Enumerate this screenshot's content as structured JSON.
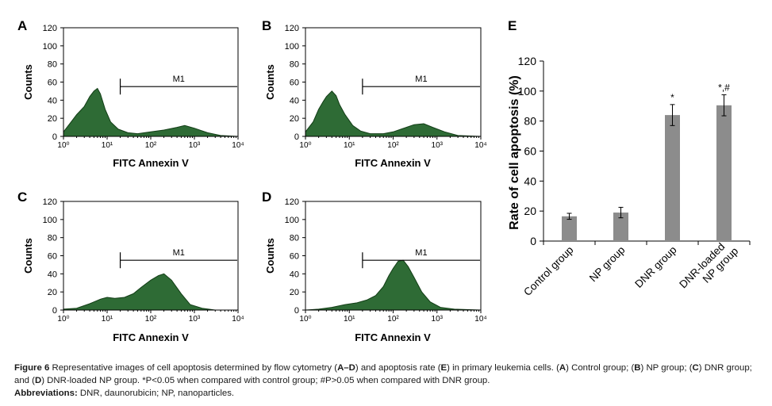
{
  "colors": {
    "histogram_fill": "#2e6b35",
    "bar_fill": "#8c8c8c",
    "axis": "#000000"
  },
  "chart_data": [
    {
      "panel": "A",
      "type": "area",
      "title": "",
      "xlabel": "FITC Annexin V",
      "ylabel": "Counts",
      "xscale": "log",
      "xlim": [
        1,
        10000
      ],
      "ylim": [
        0,
        120
      ],
      "yticks": [
        "0",
        "20",
        "40",
        "60",
        "80",
        "100",
        "120"
      ],
      "xticks": [
        "10⁰",
        "10¹",
        "10²",
        "10³",
        "10⁴"
      ],
      "gate": {
        "label": "M1",
        "from": 20,
        "to": 10000,
        "level": 55
      },
      "x": [
        1,
        1.5,
        2,
        3,
        4,
        5,
        6,
        7,
        9,
        12,
        18,
        30,
        50,
        100,
        200,
        400,
        600,
        1000,
        2000,
        4000,
        10000
      ],
      "y": [
        5,
        16,
        24,
        33,
        44,
        50,
        53,
        47,
        30,
        16,
        8,
        4,
        3,
        5,
        7,
        10,
        12,
        9,
        4,
        1,
        0
      ]
    },
    {
      "panel": "B",
      "type": "area",
      "title": "",
      "xlabel": "FITC Annexin V",
      "ylabel": "Counts",
      "xscale": "log",
      "xlim": [
        1,
        10000
      ],
      "ylim": [
        0,
        120
      ],
      "yticks": [
        "0",
        "20",
        "40",
        "60",
        "80",
        "100",
        "120"
      ],
      "xticks": [
        "10⁰",
        "10¹",
        "10²",
        "10³",
        "10⁴"
      ],
      "gate": {
        "label": "M1",
        "from": 20,
        "to": 10000,
        "level": 55
      },
      "x": [
        1,
        1.5,
        2,
        2.5,
        3,
        4,
        5,
        6,
        8,
        12,
        18,
        30,
        60,
        100,
        200,
        300,
        500,
        800,
        1500,
        3000,
        10000
      ],
      "y": [
        5,
        16,
        30,
        38,
        44,
        50,
        45,
        35,
        24,
        12,
        6,
        3,
        3,
        5,
        10,
        13,
        14,
        10,
        5,
        1,
        0
      ]
    },
    {
      "panel": "C",
      "type": "area",
      "title": "",
      "xlabel": "FITC Annexin V",
      "ylabel": "Counts",
      "xscale": "log",
      "xlim": [
        1,
        10000
      ],
      "ylim": [
        0,
        120
      ],
      "yticks": [
        "0",
        "20",
        "40",
        "60",
        "80",
        "100",
        "120"
      ],
      "xticks": [
        "10⁰",
        "10¹",
        "10²",
        "10³",
        "10⁴"
      ],
      "gate": {
        "label": "M1",
        "from": 20,
        "to": 10000,
        "level": 55
      },
      "x": [
        1,
        2,
        4,
        7,
        10,
        15,
        25,
        40,
        60,
        100,
        150,
        200,
        300,
        500,
        800,
        1500,
        3000,
        10000
      ],
      "y": [
        1,
        2,
        7,
        12,
        14,
        13,
        14,
        18,
        25,
        33,
        38,
        40,
        33,
        18,
        6,
        2,
        0,
        0
      ]
    },
    {
      "panel": "D",
      "type": "area",
      "title": "",
      "xlabel": "FITC Annexin V",
      "ylabel": "Counts",
      "xscale": "log",
      "xlim": [
        1,
        10000
      ],
      "ylim": [
        0,
        120
      ],
      "yticks": [
        "0",
        "20",
        "40",
        "60",
        "80",
        "100",
        "120"
      ],
      "xticks": [
        "10⁰",
        "10¹",
        "10²",
        "10³",
        "10⁴"
      ],
      "gate": {
        "label": "M1",
        "from": 20,
        "to": 10000,
        "level": 55
      },
      "x": [
        1,
        2,
        4,
        8,
        15,
        25,
        40,
        60,
        80,
        100,
        130,
        170,
        220,
        300,
        450,
        700,
        1200,
        2500,
        10000
      ],
      "y": [
        0,
        1,
        3,
        6,
        8,
        11,
        16,
        26,
        38,
        46,
        54,
        55,
        48,
        36,
        20,
        9,
        3,
        1,
        0
      ]
    },
    {
      "panel": "E",
      "type": "bar",
      "title": "",
      "xlabel": "",
      "ylabel": "Rate of cell apoptosis (%)",
      "ylim": [
        0,
        120
      ],
      "yticks": [
        "0",
        "20",
        "40",
        "60",
        "80",
        "100",
        "120"
      ],
      "categories": [
        "Control group",
        "NP group",
        "DNR group",
        "DNR-loaded NP group"
      ],
      "category_lines": [
        [
          "Control group"
        ],
        [
          "NP group"
        ],
        [
          "DNR group"
        ],
        [
          "DNR-loaded",
          "NP group"
        ]
      ],
      "values": [
        16.5,
        19,
        84,
        90.5
      ],
      "errors": [
        2,
        3.5,
        7,
        7
      ],
      "annotations": [
        "",
        "",
        "*",
        "*,#"
      ]
    }
  ],
  "caption": {
    "label": "Figure 6",
    "s1": " Representative images of cell apoptosis determined by flow cytometry (",
    "b1": "A–D",
    "s2": ") and apoptosis rate (",
    "b2": "E",
    "s3": ") in primary leukemia cells. (",
    "b3": "A",
    "s4": ") Control group; (",
    "b4": "B",
    "s5": ") NP group; (",
    "b5": "C",
    "s6": ") DNR group; and (",
    "b6": "D",
    "s7": ") DNR-loaded NP group. *P<0.05 when compared with control group; #P>0.05 when compared with DNR group."
  },
  "abbreviations": {
    "label": "Abbreviations:",
    "text": " DNR, daunorubicin; NP, nanoparticles."
  }
}
